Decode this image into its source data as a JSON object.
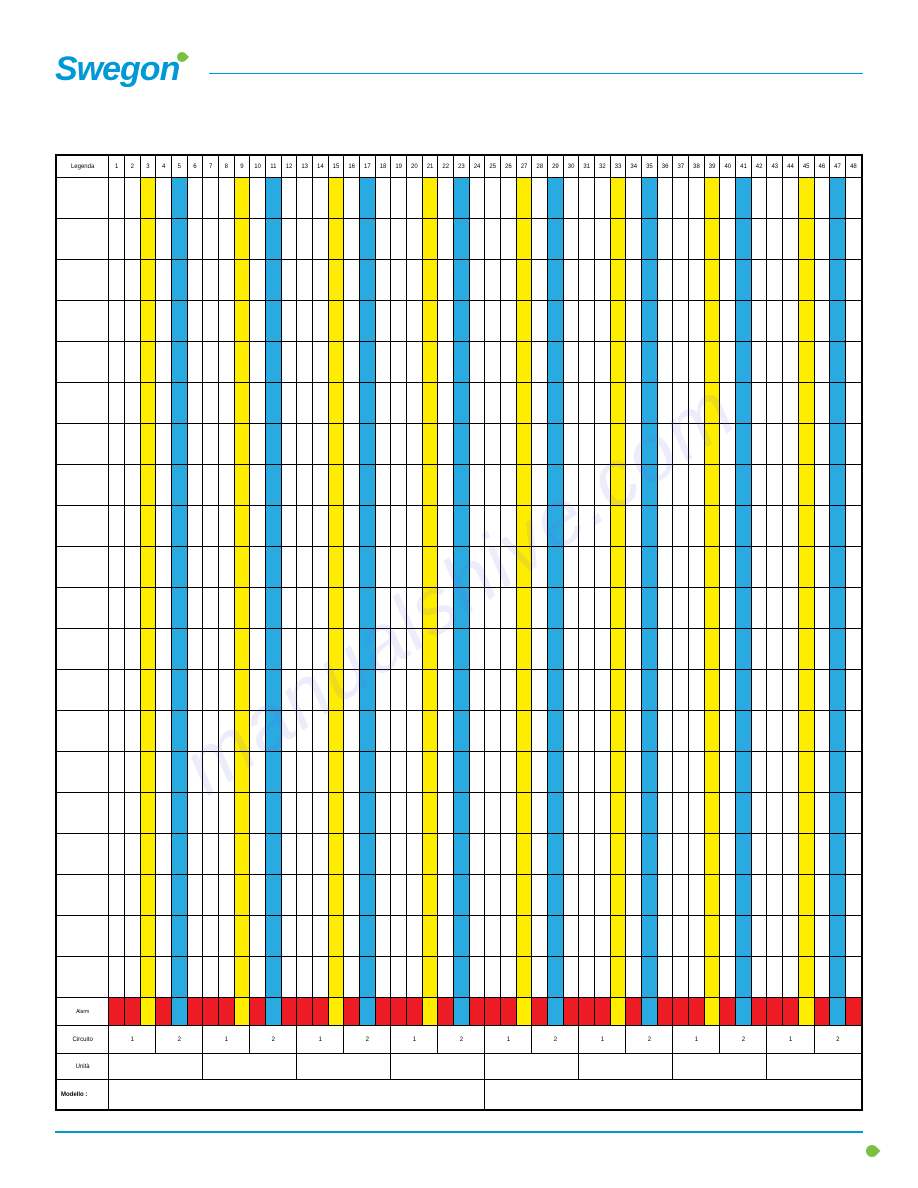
{
  "logo_text": "Swegon",
  "title": {
    "main": "",
    "sub": ""
  },
  "watermark": "manualshive.com",
  "colors": {
    "yellow": "#ffed00",
    "blue": "#29abe2",
    "red": "#ed1c24",
    "brand": "#0099d8",
    "leaf": "#7ac142"
  },
  "table": {
    "header_row": [
      "Legenda",
      "1",
      "2",
      "3",
      "4",
      "5",
      "6",
      "7",
      "8",
      "9",
      "10",
      "11",
      "12",
      "13",
      "14",
      "15",
      "16",
      "17",
      "18",
      "19",
      "20",
      "21",
      "22",
      "23",
      "24",
      "25",
      "26",
      "27",
      "28",
      "29",
      "30",
      "31",
      "32",
      "33",
      "34",
      "35",
      "36",
      "37",
      "38",
      "39",
      "40",
      "41",
      "42",
      "43",
      "44",
      "45",
      "46",
      "47",
      "48"
    ],
    "column_pattern": [
      "",
      "",
      "y",
      "",
      "b",
      "",
      "",
      "",
      "y",
      "",
      "b",
      "",
      "",
      "",
      "y",
      "",
      "b",
      "",
      "",
      "",
      "y",
      "",
      "b",
      "",
      "",
      "",
      "y",
      "",
      "b",
      "",
      "",
      "",
      "y",
      "",
      "b",
      "",
      "",
      "",
      "y",
      "",
      "b",
      "",
      "",
      "",
      "y",
      "",
      "b",
      ""
    ],
    "row_labels": [
      "",
      "",
      "",
      "",
      "",
      "",
      "",
      "",
      "",
      "",
      "",
      "",
      "",
      "",
      "",
      "",
      "",
      "",
      "",
      ""
    ],
    "alarm_row_label": "Alarm",
    "alarm_pattern": [
      "r",
      "r",
      "y",
      "r",
      "b",
      "r",
      "r",
      "r",
      "y",
      "r",
      "b",
      "r",
      "r",
      "r",
      "y",
      "r",
      "b",
      "r",
      "r",
      "r",
      "y",
      "r",
      "b",
      "r",
      "r",
      "r",
      "y",
      "r",
      "b",
      "r",
      "r",
      "r",
      "y",
      "r",
      "b",
      "r",
      "r",
      "r",
      "y",
      "r",
      "b",
      "r",
      "r",
      "r",
      "y",
      "r",
      "b",
      "r"
    ],
    "circuit_row": {
      "label": "Circuito",
      "groups": [
        "1",
        "2",
        "1",
        "2",
        "1",
        "2",
        "1",
        "2",
        "1",
        "2",
        "1",
        "2",
        "1",
        "2",
        "1",
        "2"
      ]
    },
    "unit_row": {
      "label": "Unità",
      "groups": [
        "",
        "",
        "",
        "",
        "",
        "",
        "",
        ""
      ]
    },
    "model_row": {
      "label": "Modello :",
      "left": "",
      "right": ""
    }
  },
  "footer": {
    "left": "",
    "right": ""
  }
}
